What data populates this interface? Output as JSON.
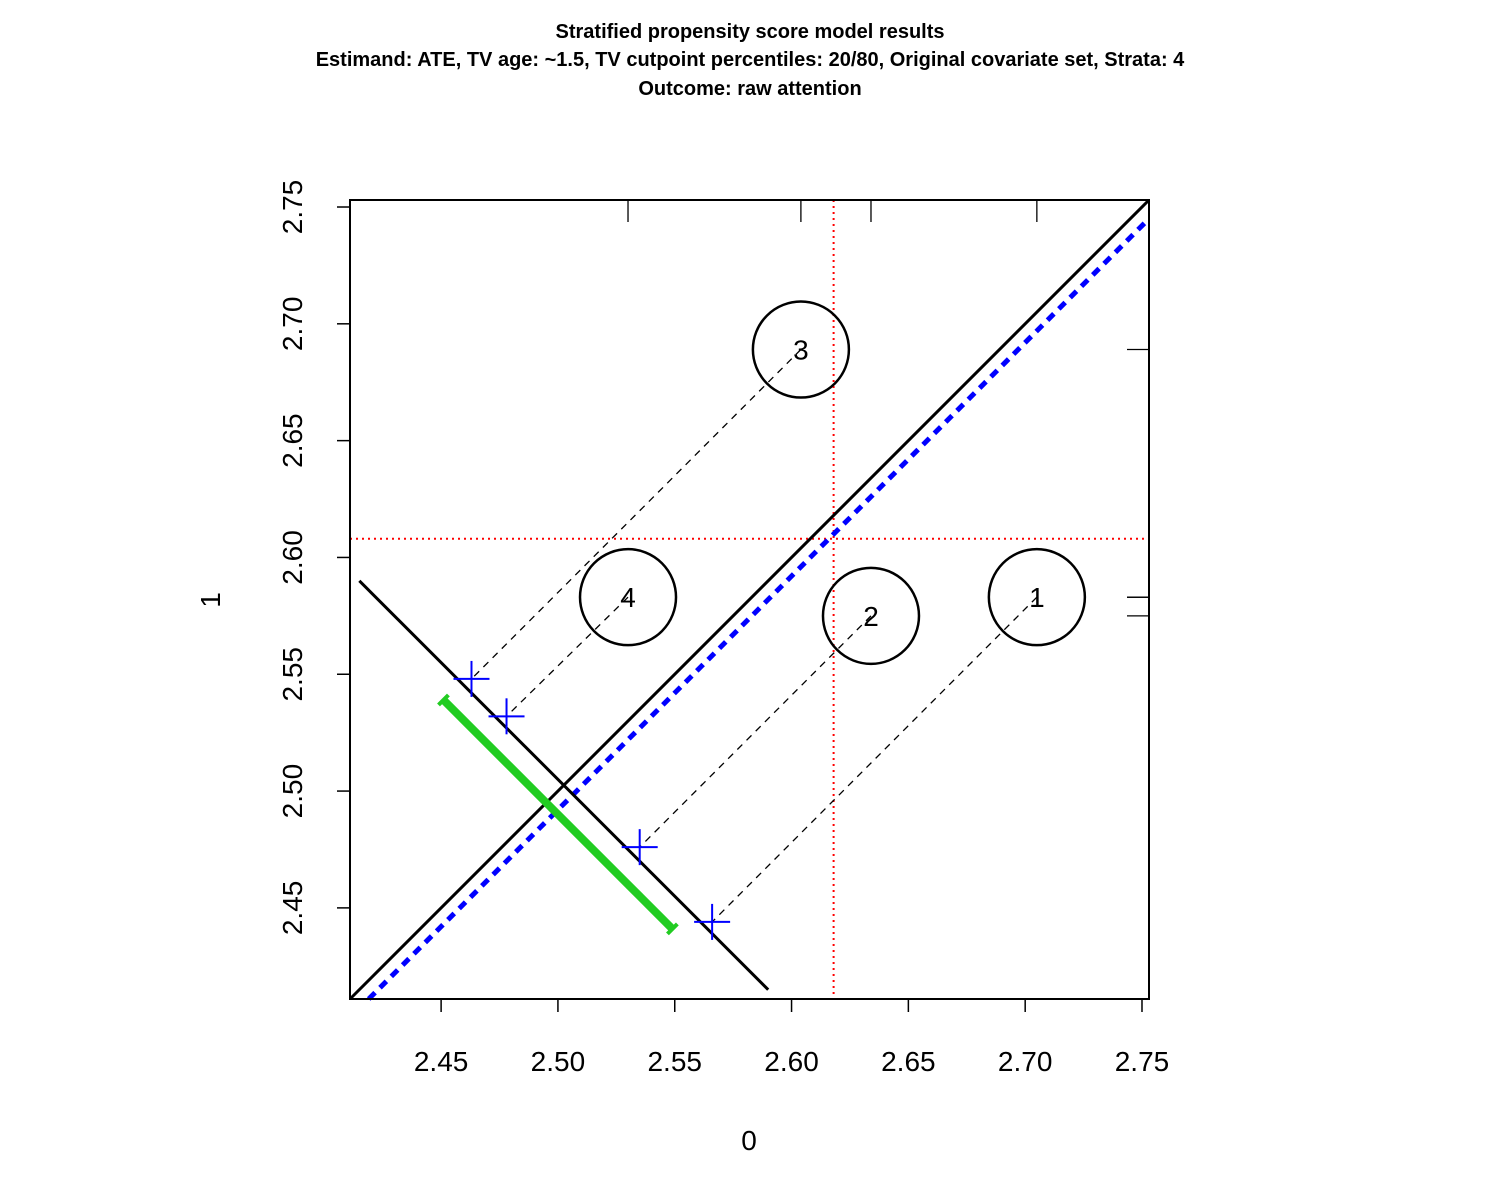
{
  "chart_data": {
    "type": "scatter",
    "title": "Stratified propensity score model results",
    "subtitle": "Estimand: ATE, TV age: ~1.5, TV cutpoint percentiles: 20/80, Original covariate set, Strata: 4",
    "subtitle2": "Outcome: raw attention",
    "xlabel": "0",
    "ylabel": "1",
    "xlim": [
      2.411,
      2.753
    ],
    "ylim": [
      2.411,
      2.753
    ],
    "xticks": [
      "2.45",
      "2.50",
      "2.55",
      "2.60",
      "2.65",
      "2.70",
      "2.75"
    ],
    "yticks": [
      "2.45",
      "2.50",
      "2.55",
      "2.60",
      "2.65",
      "2.70",
      "2.75"
    ],
    "grid": false,
    "strata": [
      {
        "label": "1",
        "x": 2.705,
        "y": 2.583,
        "proj_x": 2.566,
        "proj_y": 2.444
      },
      {
        "label": "2",
        "x": 2.634,
        "y": 2.575,
        "proj_x": 2.535,
        "proj_y": 2.476
      },
      {
        "label": "3",
        "x": 2.604,
        "y": 2.689,
        "proj_x": 2.463,
        "proj_y": 2.548
      },
      {
        "label": "4",
        "x": 2.53,
        "y": 2.583,
        "proj_x": 2.478,
        "proj_y": 2.532
      }
    ],
    "mean_x": 2.618,
    "mean_y": 2.608,
    "identity_line": {
      "from": [
        2.411,
        2.411
      ],
      "to": [
        2.753,
        2.753
      ],
      "color": "#000000"
    },
    "effect_line": {
      "from": [
        2.411,
        2.403
      ],
      "to": [
        2.753,
        2.745
      ],
      "color": "#0000ff"
    },
    "projection_axis": {
      "from": [
        2.415,
        2.59
      ],
      "to": [
        2.59,
        2.415
      ]
    },
    "ci_segment": {
      "from": [
        2.451,
        2.539
      ],
      "to": [
        2.549,
        2.441
      ],
      "color": "#22cc22"
    },
    "rug_top_x": [
      2.53,
      2.604,
      2.634,
      2.705
    ],
    "rug_right_y": [
      2.575,
      2.583,
      2.583,
      2.689
    ],
    "colors": {
      "ref_lines": "#ff0000",
      "points": "#0000ff",
      "ci": "#22cc22"
    }
  }
}
